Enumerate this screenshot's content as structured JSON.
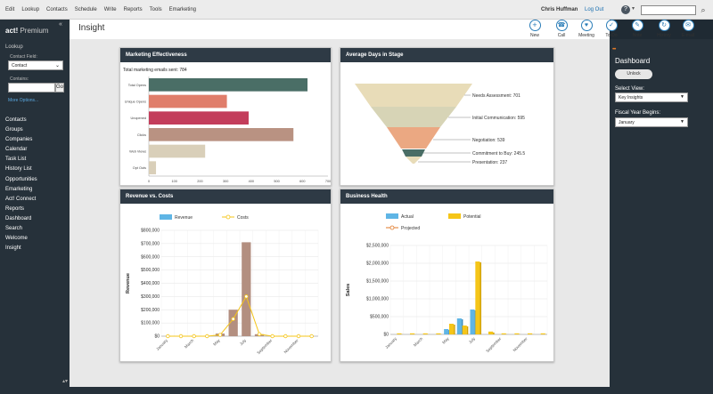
{
  "menu": [
    "Edit",
    "Lookup",
    "Contacts",
    "Schedule",
    "Write",
    "Reports",
    "Tools",
    "Emarketing"
  ],
  "header": {
    "user": "Chris Huffman",
    "logout": "Log Out",
    "help": "?"
  },
  "sidebar": {
    "logo_brand": "act!",
    "logo_edition": "Premium",
    "lookup_title": "Lookup",
    "contact_field_label": "Contact Field:",
    "contact_field_value": "Contact",
    "contains_label": "Contains:",
    "go_label": "Go",
    "more_options": "More Options...",
    "nav": [
      "Contacts",
      "Groups",
      "Companies",
      "Calendar",
      "Task List",
      "History List",
      "Opportunities",
      "Emarketing",
      "Act! Connect",
      "Reports",
      "Dashboard",
      "Search",
      "Welcome",
      "Insight"
    ]
  },
  "page": {
    "title": "Insight"
  },
  "toolbar": [
    {
      "label": "New",
      "icon": "plus-icon"
    },
    {
      "label": "Call",
      "icon": "phone-icon"
    },
    {
      "label": "Meeting",
      "icon": "handshake-icon"
    },
    {
      "label": "To-Do",
      "icon": "todo-icon"
    },
    {
      "label": "Note",
      "icon": "note-icon"
    },
    {
      "label": "History",
      "icon": "history-icon"
    },
    {
      "label": "E-mail",
      "icon": "email-icon"
    }
  ],
  "right_panel": {
    "title": "Dashboard",
    "unlock": "Unlock",
    "select_view_label": "Select View:",
    "select_view_value": "Key Insights",
    "fiscal_year_label": "Fiscal Year Begins:",
    "fiscal_year_value": "January"
  },
  "colors": {
    "panel_header": "#2e3a45",
    "sidebar": "#26313a",
    "accent": "#2a7db8"
  },
  "panels": {
    "marketing": "Marketing Effectiveness",
    "average_days": "Average Days in Stage",
    "revenue_costs": "Revenue vs. Costs",
    "business_health": "Business Health"
  },
  "chart_data": [
    {
      "type": "bar",
      "orientation": "horizontal",
      "title": "Total marketing emails sent: 784",
      "categories": [
        "Total Opens",
        "Unique Opens",
        "Unopened",
        "Clicks",
        "Web Views",
        "Opt Outs"
      ],
      "values": [
        620,
        305,
        390,
        565,
        220,
        28
      ],
      "colors": [
        "#4a6e66",
        "#e07d6a",
        "#c33d5b",
        "#b99282",
        "#d9cfb9",
        "#d9cfb9"
      ],
      "xlim": [
        0,
        700
      ],
      "xticks": [
        "0",
        "100",
        "200",
        "300",
        "400",
        "500",
        "600",
        "700"
      ]
    },
    {
      "type": "funnel",
      "stages": [
        {
          "label": "Needs Assessment:",
          "value": 701,
          "color": "#e8dcb8"
        },
        {
          "label": "Initial Communication:",
          "value": 595,
          "color": "#d7d4b6"
        },
        {
          "label": "Negotiation:",
          "value": 539,
          "color": "#eba882"
        },
        {
          "label": "Commitment to Buy:",
          "value": 245.5,
          "color": "#4a6e66"
        },
        {
          "label": "Presentation:",
          "value": 237,
          "color": "#e8dcb8"
        }
      ]
    },
    {
      "type": "bar",
      "legend": [
        "Revenue",
        "Costs"
      ],
      "ylabel": "Revenue",
      "categories": [
        "January",
        "February",
        "March",
        "April",
        "May",
        "June",
        "July",
        "August",
        "September",
        "October",
        "November",
        "December"
      ],
      "xtick_labels": [
        "January",
        "March",
        "May",
        "July",
        "September",
        "November"
      ],
      "yticks": [
        "$0",
        "$100,000",
        "$200,000",
        "$300,000",
        "$400,000",
        "$500,000",
        "$600,000",
        "$700,000",
        "$800,000"
      ],
      "ylim": [
        0,
        800000
      ],
      "series": [
        {
          "name": "Revenue",
          "values": [
            0,
            0,
            0,
            0,
            20000,
            200000,
            710000,
            15000,
            0,
            0,
            0,
            0
          ]
        },
        {
          "name": "Costs",
          "values": [
            0,
            0,
            0,
            0,
            10000,
            130000,
            300000,
            15000,
            0,
            0,
            0,
            0
          ]
        }
      ]
    },
    {
      "type": "bar",
      "legend": [
        "Actual",
        "Potential",
        "Projected"
      ],
      "ylabel": "Sales",
      "categories": [
        "January",
        "February",
        "March",
        "April",
        "May",
        "June",
        "July",
        "August",
        "September",
        "October",
        "November",
        "December"
      ],
      "xtick_labels": [
        "January",
        "March",
        "May",
        "July",
        "September",
        "November"
      ],
      "yticks": [
        "$0",
        "$500,000",
        "$1,000,000",
        "$1,500,000",
        "$2,000,000",
        "$2,500,000"
      ],
      "ylim": [
        0,
        2500000
      ],
      "series": [
        {
          "name": "Actual",
          "values": [
            0,
            0,
            0,
            0,
            150000,
            450000,
            700000,
            0,
            0,
            0,
            0,
            0
          ]
        },
        {
          "name": "Potential",
          "values": [
            30000,
            30000,
            30000,
            30000,
            300000,
            250000,
            2050000,
            80000,
            30000,
            30000,
            30000,
            30000
          ]
        },
        {
          "name": "Projected",
          "values": [
            0,
            0,
            0,
            0,
            0,
            0,
            0,
            0,
            0,
            0,
            0,
            0
          ]
        }
      ]
    }
  ]
}
